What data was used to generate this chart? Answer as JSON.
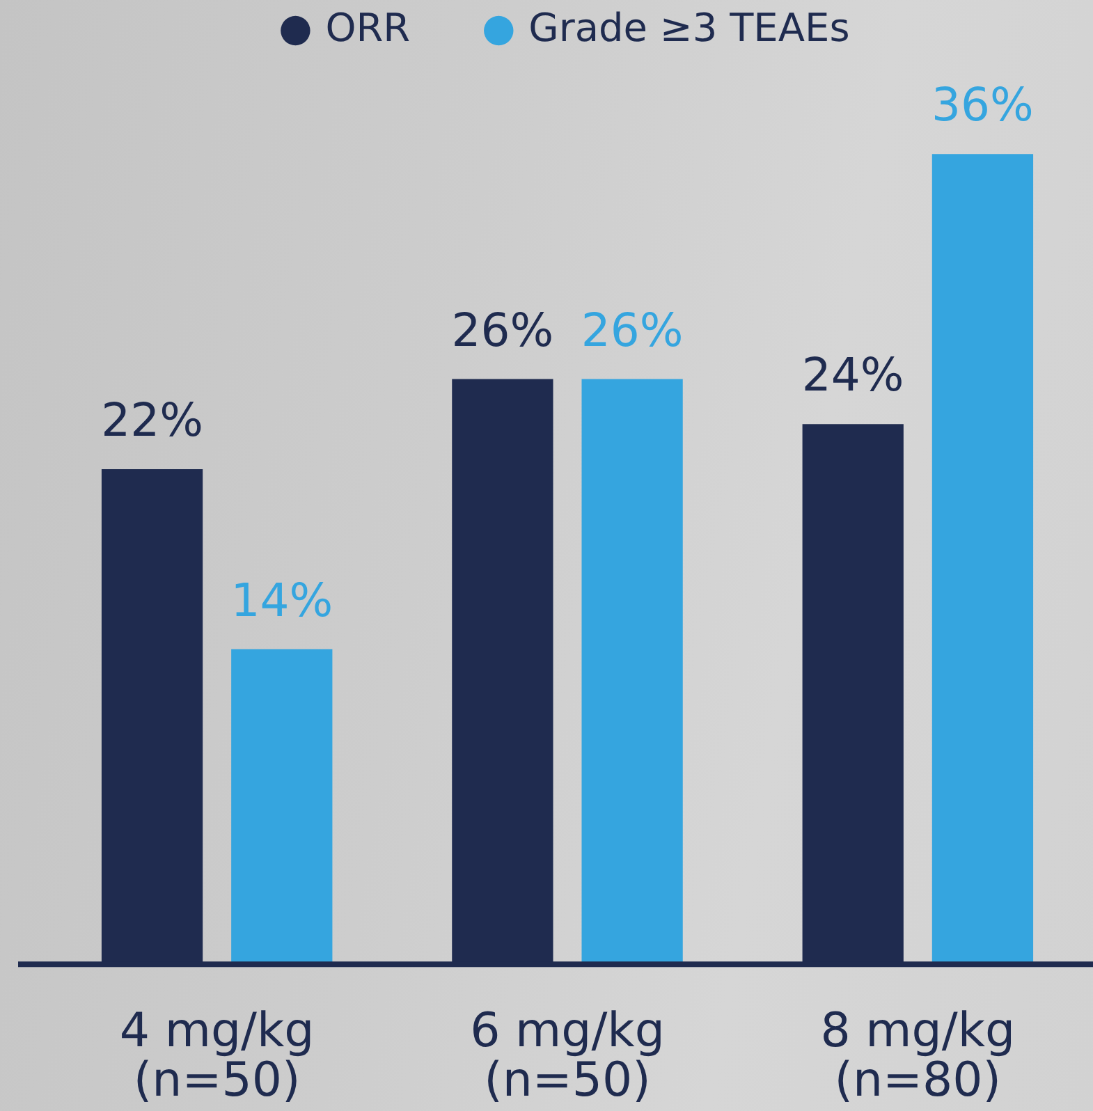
{
  "chart_data": {
    "type": "bar",
    "categories": [
      "4 mg/kg\n(n=50)",
      "6 mg/kg\n(n=50)",
      "8 mg/kg\n(n=80)"
    ],
    "series": [
      {
        "name": "ORR",
        "color": "#1f2b4f",
        "values": [
          22,
          26,
          24
        ],
        "value_labels": [
          "22%",
          "26%",
          "24%"
        ]
      },
      {
        "name": "Grade ≥3 TEAEs",
        "color": "#35a5df",
        "values": [
          14,
          26,
          36
        ],
        "value_labels": [
          "14%",
          "26%",
          "36%"
        ]
      }
    ],
    "tick_labels": "x",
    "legend": "top"
  }
}
